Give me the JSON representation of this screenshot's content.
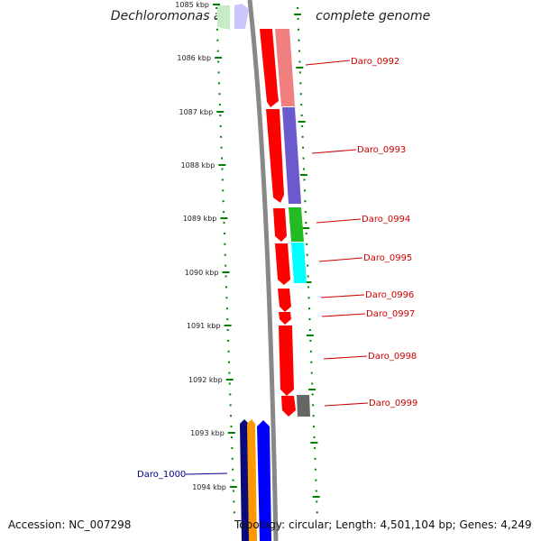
{
  "title": "Dechloromonas aromatica RCB, complete genome",
  "accession": "Accession: NC_007298",
  "topology": "Topology: circular; Length: 4,501,104 bp; Genes: 4,249",
  "ticks": [
    "1085 kbp",
    "1086 kbp",
    "1087 kbp",
    "1088 kbp",
    "1089 kbp",
    "1090 kbp",
    "1091 kbp",
    "1092 kbp",
    "1093 kbp",
    "1094 kbp"
  ],
  "labels": {
    "Daro_0992": "Daro_0992",
    "Daro_0993": "Daro_0993",
    "Daro_0994": "Daro_0994",
    "Daro_0995": "Daro_0995",
    "Daro_0996": "Daro_0996",
    "Daro_0997": "Daro_0997",
    "Daro_0998": "Daro_0998",
    "Daro_0999": "Daro_0999",
    "Daro_1000": "Daro_1000"
  },
  "colors": {
    "red": "#ff0000",
    "pink": "#f08080",
    "purple": "#6a5acd",
    "green": "#22bb22",
    "cyan": "#00ffff",
    "gray": "#666666",
    "blue": "#0000ff",
    "navy": "#0a0a7a",
    "orange": "#ff9900",
    "label_red": "#cc0000",
    "label_blue": "#00008b",
    "tick_green": "#008000"
  }
}
